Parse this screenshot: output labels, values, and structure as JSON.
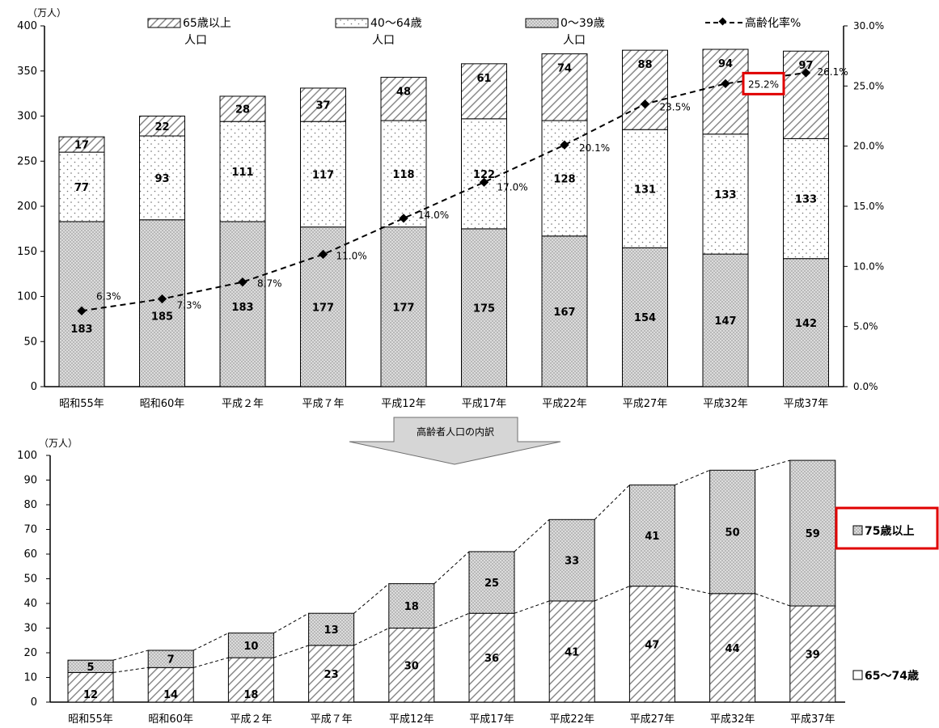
{
  "chart_data": [
    {
      "type": "bar",
      "stacked": true,
      "categories": [
        "昭和55年",
        "昭和60年",
        "平成２年",
        "平成７年",
        "平成12年",
        "平成17年",
        "平成22年",
        "平成27年",
        "平成32年",
        "平成37年"
      ],
      "y_unit": "（万人）",
      "ylim": [
        0,
        400
      ],
      "yticks": [
        0,
        50,
        100,
        150,
        200,
        250,
        300,
        350,
        400
      ],
      "y2lim": [
        0,
        30
      ],
      "y2ticks": [
        "0.0%",
        "5.0%",
        "10.0%",
        "15.0%",
        "20.0%",
        "25.0%",
        "30.0%"
      ],
      "series": [
        {
          "name": "0～39歳",
          "values": [
            183,
            185,
            183,
            177,
            177,
            175,
            167,
            154,
            147,
            142
          ]
        },
        {
          "name": "40～64歳",
          "values": [
            77,
            93,
            111,
            117,
            118,
            122,
            128,
            131,
            133,
            133
          ]
        },
        {
          "name": "65歳以上人口",
          "values": [
            17,
            22,
            28,
            37,
            48,
            61,
            74,
            88,
            94,
            97
          ]
        }
      ],
      "legend": [
        {
          "line1": "65歳以上",
          "line2": "人口"
        },
        {
          "line1": "40～64歳",
          "line2": "人口"
        },
        {
          "line1": "0～39歳",
          "line2": ""
        },
        {
          "line1": "高齢化率%",
          "line2": ""
        }
      ],
      "line_series": {
        "name": "高齢化率%",
        "axis": "right",
        "values": [
          6.3,
          7.3,
          8.7,
          11.0,
          14.0,
          17.0,
          20.1,
          23.5,
          25.2,
          26.1
        ],
        "labels": [
          "6.3%",
          "7.3%",
          "8.7%",
          "11.0%",
          "14.0%",
          "17.0%",
          "20.1%",
          "23.5%",
          "25.2%",
          "26.1%"
        ],
        "highlighted_label": "25.2%"
      },
      "legend_position": "top",
      "grid": false
    },
    {
      "type": "bar",
      "stacked": true,
      "categories": [
        "昭和55年",
        "昭和60年",
        "平成２年",
        "平成７年",
        "平成12年",
        "平成17年",
        "平成22年",
        "平成27年",
        "平成32年",
        "平成37年"
      ],
      "y_unit": "（万人）",
      "ylim": [
        0,
        100
      ],
      "yticks": [
        0,
        10,
        20,
        30,
        40,
        50,
        60,
        70,
        80,
        90,
        100
      ],
      "series": [
        {
          "name": "65～74歳",
          "values": [
            12,
            14,
            18,
            23,
            30,
            36,
            41,
            47,
            44,
            39
          ]
        },
        {
          "name": "75歳以上",
          "values": [
            5,
            7,
            10,
            13,
            18,
            25,
            33,
            41,
            50,
            59
          ]
        }
      ],
      "legend_position": "right",
      "grid": false
    }
  ],
  "arrow_label": "高齢者人口の内訳"
}
